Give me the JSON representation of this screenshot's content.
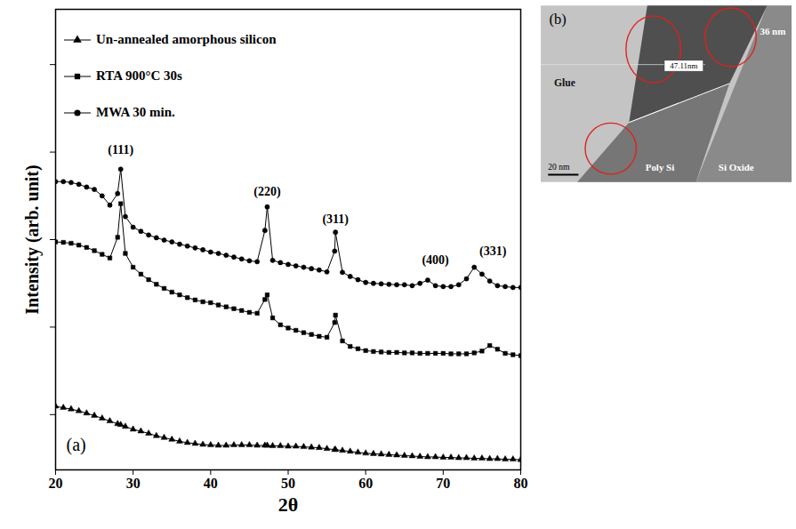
{
  "chart_data": {
    "type": "line",
    "x_label": "2θ",
    "y_label": "Intensity (arb. unit)",
    "panel_label": "(a)",
    "xlim": [
      20,
      80
    ],
    "xticks": [
      20,
      30,
      40,
      50,
      60,
      70,
      80
    ],
    "ylim": [
      0,
      100
    ],
    "yticks": [
      12,
      31,
      50,
      69,
      88
    ],
    "tick_labels": "x",
    "grid": false,
    "legend": "top-left",
    "x": [
      20,
      21,
      22,
      23,
      24,
      25,
      26,
      27,
      28,
      28.4,
      29,
      30,
      31,
      32,
      33,
      34,
      35,
      36,
      37,
      38,
      39,
      40,
      41,
      42,
      43,
      44,
      45,
      46,
      47,
      47.3,
      48,
      49,
      50,
      51,
      52,
      53,
      54,
      55,
      56,
      56.1,
      57,
      58,
      59,
      60,
      61,
      62,
      63,
      64,
      65,
      66,
      67,
      68,
      69,
      70,
      71,
      72,
      73,
      74,
      75,
      76,
      77,
      78,
      79,
      80
    ],
    "series": [
      {
        "name": "Un-annealed amorphous silicon",
        "color": "#000000",
        "marker": "triangle",
        "line_style": "solid",
        "values": [
          13.8,
          13.5,
          13.2,
          12.8,
          12.3,
          11.8,
          11.2,
          10.6,
          10.0,
          9.8,
          9.4,
          8.8,
          8.4,
          7.9,
          7.4,
          7.0,
          6.6,
          6.2,
          5.9,
          5.7,
          5.5,
          5.4,
          5.3,
          5.3,
          5.4,
          5.4,
          5.4,
          5.3,
          5.3,
          5.3,
          5.2,
          5.2,
          5.1,
          5.1,
          5.0,
          4.9,
          4.8,
          4.6,
          4.4,
          4.4,
          4.2,
          4.0,
          3.8,
          3.6,
          3.5,
          3.4,
          3.3,
          3.2,
          3.1,
          3.0,
          2.9,
          2.8,
          2.8,
          2.7,
          2.7,
          2.6,
          2.6,
          2.5,
          2.5,
          2.4,
          2.4,
          2.3,
          2.3,
          2.2
        ]
      },
      {
        "name": "RTA 900°C 30s",
        "color": "#000000",
        "marker": "square",
        "line_style": "solid",
        "values": [
          49.5,
          49.4,
          49.2,
          48.8,
          48.3,
          47.6,
          46.8,
          46.0,
          50.5,
          57.8,
          47.0,
          44.0,
          42.5,
          41.3,
          40.3,
          39.4,
          38.6,
          38.0,
          37.4,
          36.9,
          36.5,
          36.3,
          35.8,
          35.4,
          35.0,
          34.6,
          34.2,
          34.0,
          37.0,
          38.0,
          33.0,
          31.5,
          30.8,
          30.3,
          29.8,
          29.4,
          29.0,
          28.8,
          32.0,
          33.6,
          28.0,
          26.8,
          26.3,
          25.9,
          25.7,
          25.6,
          25.5,
          25.5,
          25.4,
          25.4,
          25.3,
          25.3,
          25.3,
          25.3,
          25.2,
          25.2,
          25.2,
          25.4,
          25.8,
          27.0,
          26.2,
          25.3,
          25.0,
          24.8
        ]
      },
      {
        "name": "MWA 30 min.",
        "color": "#000000",
        "marker": "circle",
        "line_style": "solid",
        "values": [
          62.6,
          62.6,
          62.4,
          62.0,
          61.4,
          60.9,
          59.5,
          57.5,
          60.0,
          65.3,
          55.0,
          52.7,
          51.8,
          51.0,
          50.4,
          49.9,
          49.5,
          49.0,
          48.6,
          48.2,
          47.8,
          47.3,
          47.0,
          46.6,
          46.2,
          45.8,
          45.4,
          45.2,
          52.0,
          57.1,
          45.5,
          45.0,
          44.6,
          44.3,
          44.0,
          43.7,
          43.4,
          43.0,
          47.5,
          51.6,
          42.9,
          42.0,
          41.3,
          40.7,
          40.5,
          40.4,
          40.3,
          40.2,
          40.2,
          40.0,
          40.5,
          41.2,
          40.0,
          39.8,
          39.8,
          40.2,
          41.5,
          44.0,
          42.5,
          41.0,
          40.0,
          39.8,
          39.6,
          39.6
        ]
      }
    ],
    "annotations": [
      {
        "text": "(111)",
        "x": 28.4,
        "y": 69.5
      },
      {
        "text": "(220)",
        "x": 47.3,
        "y": 60.5
      },
      {
        "text": "(311)",
        "x": 56.1,
        "y": 54.5
      },
      {
        "text": "(400)",
        "x": 69,
        "y": 45.5
      },
      {
        "text": "(331)",
        "x": 76.4,
        "y": 47.5
      }
    ]
  },
  "image_inset": {
    "type": "micrograph",
    "panel_label": "(b)",
    "regions": [
      "Glue",
      "Poly Si",
      "Si Oxide"
    ],
    "measures": [
      "36 nm",
      "47.11nm"
    ],
    "scale_bar": "20 nm"
  }
}
